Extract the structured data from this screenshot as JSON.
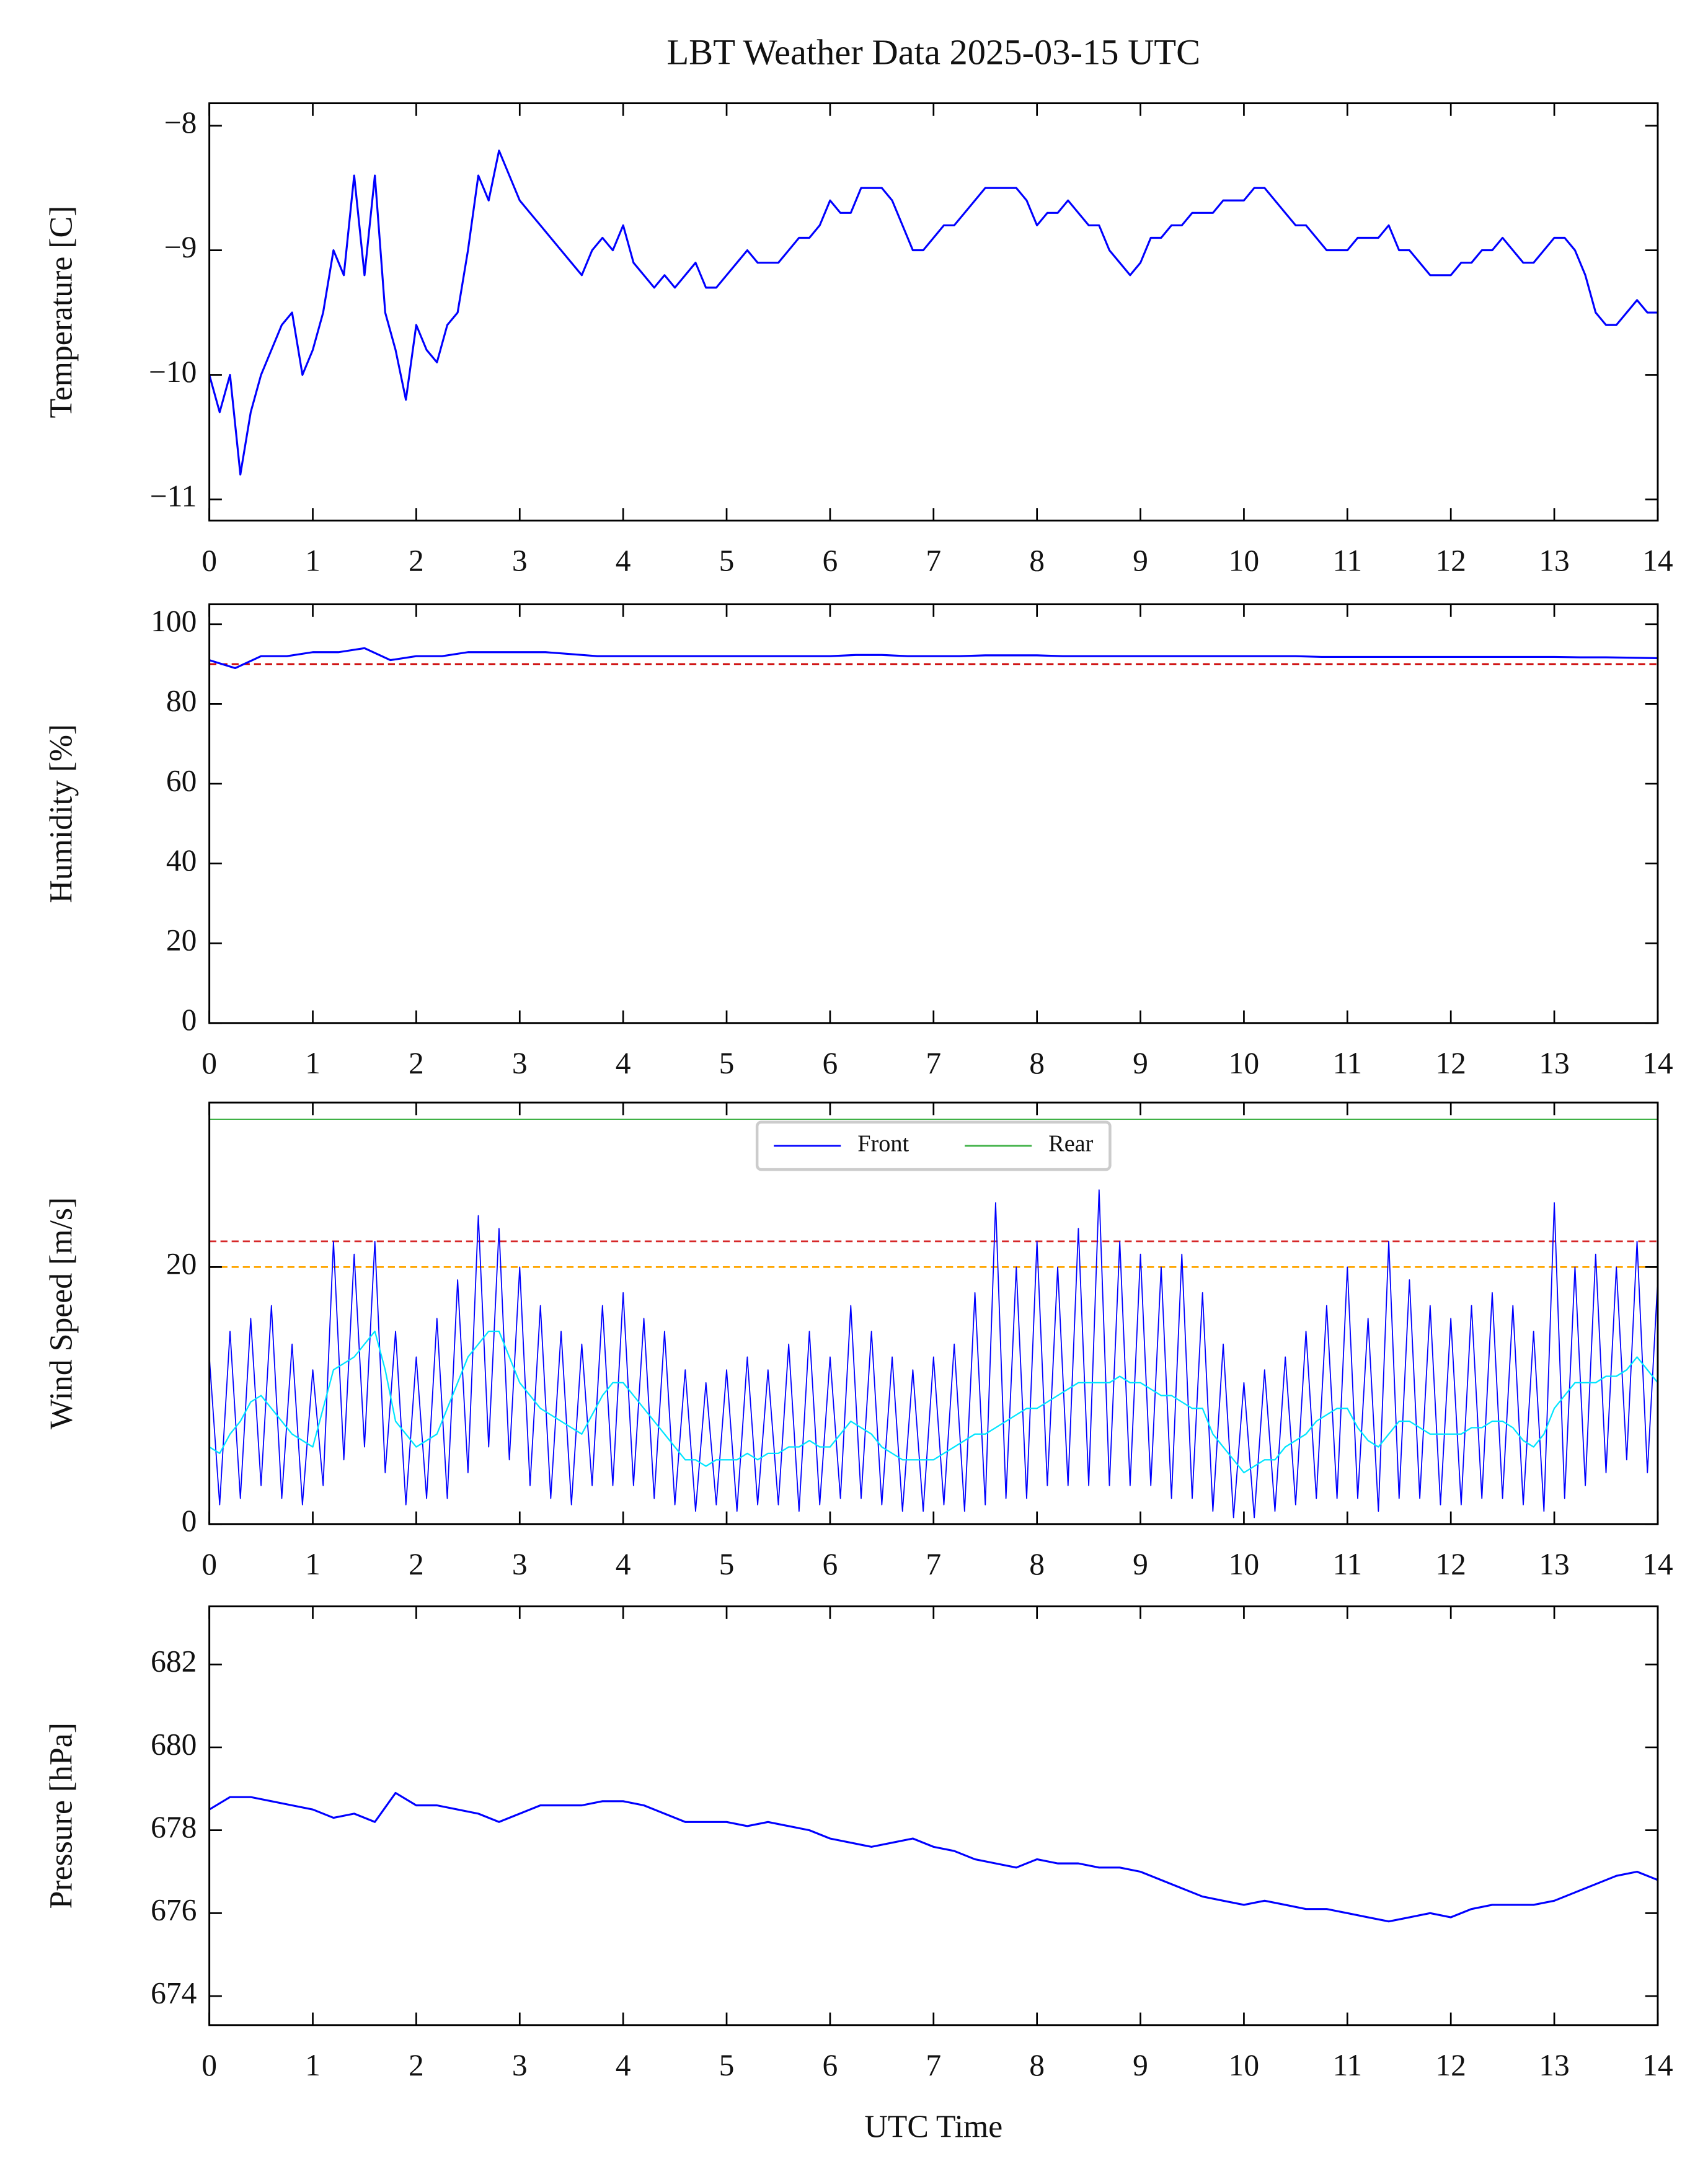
{
  "chart_data": [
    {
      "type": "line",
      "title": "LBT Weather Data 2025-03-15 UTC",
      "ylabel": "Temperature [C]",
      "x": [
        0,
        0.1,
        0.2,
        0.3,
        0.4,
        0.5,
        0.6,
        0.7,
        0.8,
        0.9,
        1,
        1.1,
        1.2,
        1.3,
        1.4,
        1.5,
        1.6,
        1.7,
        1.8,
        1.9,
        2,
        2.1,
        2.2,
        2.3,
        2.4,
        2.5,
        2.6,
        2.7,
        2.8,
        2.9,
        3,
        3.1,
        3.2,
        3.3,
        3.4,
        3.5,
        3.6,
        3.7,
        3.8,
        3.9,
        4,
        4.1,
        4.2,
        4.3,
        4.4,
        4.5,
        4.6,
        4.7,
        4.8,
        4.9,
        5,
        5.1,
        5.2,
        5.3,
        5.4,
        5.5,
        5.6,
        5.7,
        5.8,
        5.9,
        6,
        6.1,
        6.2,
        6.3,
        6.4,
        6.5,
        6.6,
        6.7,
        6.8,
        6.9,
        7,
        7.1,
        7.2,
        7.3,
        7.4,
        7.5,
        7.6,
        7.7,
        7.8,
        7.9,
        8,
        8.1,
        8.2,
        8.3,
        8.4,
        8.5,
        8.6,
        8.7,
        8.8,
        8.9,
        9,
        9.1,
        9.2,
        9.3,
        9.4,
        9.5,
        9.6,
        9.7,
        9.8,
        9.9,
        10,
        10.1,
        10.2,
        10.3,
        10.4,
        10.5,
        10.6,
        10.7,
        10.8,
        10.9,
        11,
        11.1,
        11.2,
        11.3,
        11.4,
        11.5,
        11.6,
        11.7,
        11.8,
        11.9,
        12,
        12.1,
        12.2,
        12.3,
        12.4,
        12.5,
        12.6,
        12.7,
        12.8,
        12.9,
        13,
        13.1,
        13.2,
        13.3,
        13.4,
        13.5,
        13.6,
        13.7,
        13.8,
        13.9,
        14
      ],
      "series": [
        {
          "color": "#0000ff",
          "values": [
            -10.0,
            -10.3,
            -10.0,
            -10.8,
            -10.3,
            -10.0,
            -9.8,
            -9.6,
            -9.5,
            -10.0,
            -9.8,
            -9.5,
            -9.0,
            -9.2,
            -8.4,
            -9.2,
            -8.4,
            -9.5,
            -9.8,
            -10.2,
            -9.6,
            -9.8,
            -9.9,
            -9.6,
            -9.5,
            -9.0,
            -8.4,
            -8.6,
            -8.2,
            -8.4,
            -8.6,
            -8.7,
            -8.8,
            -8.9,
            -9.0,
            -9.1,
            -9.2,
            -9.0,
            -8.9,
            -9.0,
            -8.8,
            -9.1,
            -9.2,
            -9.3,
            -9.2,
            -9.3,
            -9.2,
            -9.1,
            -9.3,
            -9.3,
            -9.2,
            -9.1,
            -9.0,
            -9.1,
            -9.1,
            -9.1,
            -9.0,
            -8.9,
            -8.9,
            -8.8,
            -8.6,
            -8.7,
            -8.7,
            -8.5,
            -8.5,
            -8.5,
            -8.6,
            -8.8,
            -9.0,
            -9.0,
            -8.9,
            -8.8,
            -8.8,
            -8.7,
            -8.6,
            -8.5,
            -8.5,
            -8.5,
            -8.5,
            -8.6,
            -8.8,
            -8.7,
            -8.7,
            -8.6,
            -8.7,
            -8.8,
            -8.8,
            -9.0,
            -9.1,
            -9.2,
            -9.1,
            -8.9,
            -8.9,
            -8.8,
            -8.8,
            -8.7,
            -8.7,
            -8.7,
            -8.6,
            -8.6,
            -8.6,
            -8.5,
            -8.5,
            -8.6,
            -8.7,
            -8.8,
            -8.8,
            -8.9,
            -9.0,
            -9.0,
            -9.0,
            -8.9,
            -8.9,
            -8.9,
            -8.8,
            -9.0,
            -9.0,
            -9.1,
            -9.2,
            -9.2,
            -9.2,
            -9.1,
            -9.1,
            -9.0,
            -9.0,
            -8.9,
            -9.0,
            -9.1,
            -9.1,
            -9.0,
            -8.9,
            -8.9,
            -9.0,
            -9.2,
            -9.5,
            -9.6,
            -9.6,
            -9.5,
            -9.4,
            -9.5,
            -9.5
          ]
        }
      ],
      "xlim": [
        0,
        14
      ],
      "xticks": [
        0,
        1,
        2,
        3,
        4,
        5,
        6,
        7,
        8,
        9,
        10,
        11,
        12,
        13,
        14
      ],
      "ylim": [
        -11.17,
        -7.82
      ],
      "yticks": [
        {
          "value": -11,
          "label": "−11"
        },
        {
          "value": -10,
          "label": "−10"
        },
        {
          "value": -9,
          "label": "−9"
        },
        {
          "value": -8,
          "label": "−8"
        }
      ]
    },
    {
      "type": "line",
      "ylabel": "Humidity [%]",
      "x": [
        0,
        0.25,
        0.5,
        0.75,
        1,
        1.25,
        1.5,
        1.75,
        2,
        2.25,
        2.5,
        2.75,
        3,
        3.25,
        3.5,
        3.75,
        4,
        4.25,
        4.5,
        4.75,
        5,
        5.25,
        5.5,
        5.75,
        6,
        6.25,
        6.5,
        6.75,
        7,
        7.25,
        7.5,
        7.75,
        8,
        8.25,
        8.5,
        8.75,
        9,
        9.25,
        9.5,
        9.75,
        10,
        10.25,
        10.5,
        10.75,
        11,
        11.25,
        11.5,
        11.75,
        12,
        12.25,
        12.5,
        12.75,
        13,
        13.25,
        13.5,
        13.75,
        14
      ],
      "series": [
        {
          "color": "#0000ff",
          "values": [
            91,
            89,
            92,
            92,
            93,
            93,
            94,
            91,
            92,
            92,
            93,
            93,
            93,
            93,
            92.5,
            92,
            92,
            92,
            92,
            92,
            92,
            92,
            92,
            92,
            92,
            92.3,
            92.3,
            92,
            92,
            92,
            92.2,
            92.2,
            92.2,
            92,
            92,
            92,
            92,
            92,
            92,
            92,
            92,
            92,
            92,
            91.8,
            91.8,
            91.8,
            91.8,
            91.8,
            91.8,
            91.8,
            91.8,
            91.8,
            91.8,
            91.7,
            91.7,
            91.6,
            91.5
          ]
        }
      ],
      "hlines": [
        {
          "value": 90,
          "color": "#cc0000",
          "dashed": true
        }
      ],
      "xlim": [
        0,
        14
      ],
      "xticks": [
        0,
        1,
        2,
        3,
        4,
        5,
        6,
        7,
        8,
        9,
        10,
        11,
        12,
        13,
        14
      ],
      "ylim": [
        0,
        105
      ],
      "yticks": [
        0,
        20,
        40,
        60,
        80,
        100
      ]
    },
    {
      "type": "line",
      "ylabel": "Wind Speed [m/s]",
      "legend": "upper center",
      "x": [
        0,
        0.1,
        0.2,
        0.3,
        0.4,
        0.5,
        0.6,
        0.7,
        0.8,
        0.9,
        1,
        1.1,
        1.2,
        1.3,
        1.4,
        1.5,
        1.6,
        1.7,
        1.8,
        1.9,
        2,
        2.1,
        2.2,
        2.3,
        2.4,
        2.5,
        2.6,
        2.7,
        2.8,
        2.9,
        3,
        3.1,
        3.2,
        3.3,
        3.4,
        3.5,
        3.6,
        3.7,
        3.8,
        3.9,
        4,
        4.1,
        4.2,
        4.3,
        4.4,
        4.5,
        4.6,
        4.7,
        4.8,
        4.9,
        5,
        5.1,
        5.2,
        5.3,
        5.4,
        5.5,
        5.6,
        5.7,
        5.8,
        5.9,
        6,
        6.1,
        6.2,
        6.3,
        6.4,
        6.5,
        6.6,
        6.7,
        6.8,
        6.9,
        7,
        7.1,
        7.2,
        7.3,
        7.4,
        7.5,
        7.6,
        7.7,
        7.8,
        7.9,
        8,
        8.1,
        8.2,
        8.3,
        8.4,
        8.5,
        8.6,
        8.7,
        8.8,
        8.9,
        9,
        9.1,
        9.2,
        9.3,
        9.4,
        9.5,
        9.6,
        9.7,
        9.8,
        9.9,
        10,
        10.1,
        10.2,
        10.3,
        10.4,
        10.5,
        10.6,
        10.7,
        10.8,
        10.9,
        11,
        11.1,
        11.2,
        11.3,
        11.4,
        11.5,
        11.6,
        11.7,
        11.8,
        11.9,
        12,
        12.1,
        12.2,
        12.3,
        12.4,
        12.5,
        12.6,
        12.7,
        12.8,
        12.9,
        13,
        13.1,
        13.2,
        13.3,
        13.4,
        13.5,
        13.6,
        13.7,
        13.8,
        13.9,
        14
      ],
      "series": [
        {
          "name": "Front",
          "color": "#0000ff",
          "width": 0.8,
          "values": [
            13,
            1.5,
            15,
            2,
            16,
            3,
            17,
            2,
            14,
            1.5,
            12,
            3,
            22,
            5,
            21,
            6,
            22,
            4,
            15,
            1.5,
            13,
            2,
            16,
            2,
            19,
            4,
            24,
            6,
            23,
            5,
            20,
            3,
            17,
            2,
            15,
            1.5,
            14,
            3,
            17,
            3,
            18,
            3,
            16,
            2,
            15,
            1.5,
            12,
            1,
            11,
            1.5,
            12,
            1,
            13,
            1.5,
            12,
            1.5,
            14,
            1,
            15,
            1.5,
            13,
            2,
            17,
            2,
            15,
            1.5,
            13,
            1,
            12,
            1,
            13,
            1.5,
            14,
            1,
            18,
            1.5,
            25,
            2,
            20,
            2,
            22,
            3,
            20,
            3,
            23,
            3,
            26,
            3,
            22,
            3,
            21,
            3,
            20,
            2,
            21,
            2,
            18,
            1,
            14,
            0.5,
            11,
            0.5,
            12,
            1,
            13,
            1.5,
            15,
            2,
            17,
            2,
            20,
            2,
            16,
            1,
            22,
            2,
            19,
            2,
            17,
            1.5,
            16,
            1.5,
            17,
            2,
            18,
            2,
            17,
            1.5,
            15,
            1,
            25,
            2,
            20,
            3,
            21,
            4,
            20,
            5,
            22,
            4,
            19
          ]
        },
        {
          "color": "#00e5ff",
          "width": 1,
          "values": [
            6,
            5.5,
            7,
            8,
            9.5,
            10,
            9,
            8,
            7,
            6.5,
            6,
            9,
            12,
            12.5,
            13,
            14,
            15,
            12,
            8,
            7,
            6,
            6.5,
            7,
            9,
            11,
            13,
            14,
            15,
            15,
            13,
            11,
            10,
            9,
            8.5,
            8,
            7.5,
            7,
            8.5,
            10,
            11,
            11,
            10,
            9,
            8,
            7,
            6,
            5,
            5,
            4.5,
            5,
            5,
            5,
            5.5,
            5,
            5.5,
            5.5,
            6,
            6,
            6.5,
            6,
            6,
            7,
            8,
            7.5,
            7,
            6,
            5.5,
            5,
            5,
            5,
            5,
            5.5,
            6,
            6.5,
            7,
            7,
            7.5,
            8,
            8.5,
            9,
            9,
            9.5,
            10,
            10.5,
            11,
            11,
            11,
            11,
            11.5,
            11,
            11,
            10.5,
            10,
            10,
            9.5,
            9,
            9,
            7,
            6,
            5,
            4,
            4.5,
            5,
            5,
            6,
            6.5,
            7,
            8,
            8.5,
            9,
            9,
            7.5,
            6.5,
            6,
            7,
            8,
            8,
            7.5,
            7,
            7,
            7,
            7,
            7.5,
            7.5,
            8,
            8,
            7.5,
            6.5,
            6,
            7,
            9,
            10,
            11,
            11,
            11,
            11.5,
            11.5,
            12,
            13,
            12,
            11
          ]
        },
        {
          "name": "Rear",
          "color": "#3cb043",
          "width": 0.8,
          "x": [
            0,
            14
          ],
          "values": [
            31.5,
            31.5
          ]
        }
      ],
      "hlines": [
        {
          "value": 22,
          "color": "#d62728",
          "dashed": true
        },
        {
          "value": 20,
          "color": "#ffa500",
          "dashed": true
        }
      ],
      "xlim": [
        0,
        14
      ],
      "xticks": [
        0,
        1,
        2,
        3,
        4,
        5,
        6,
        7,
        8,
        9,
        10,
        11,
        12,
        13,
        14
      ],
      "ylim": [
        0,
        32.8
      ],
      "yticks": [
        0,
        20
      ]
    },
    {
      "type": "line",
      "ylabel": "Pressure [hPa]",
      "xlabel": "UTC Time",
      "x": [
        0,
        0.2,
        0.4,
        0.6,
        0.8,
        1,
        1.2,
        1.4,
        1.6,
        1.8,
        2,
        2.2,
        2.4,
        2.6,
        2.8,
        3,
        3.2,
        3.4,
        3.6,
        3.8,
        4,
        4.2,
        4.4,
        4.6,
        4.8,
        5,
        5.2,
        5.4,
        5.6,
        5.8,
        6,
        6.2,
        6.4,
        6.6,
        6.8,
        7,
        7.2,
        7.4,
        7.6,
        7.8,
        8,
        8.2,
        8.4,
        8.6,
        8.8,
        9,
        9.2,
        9.4,
        9.6,
        9.8,
        10,
        10.2,
        10.4,
        10.6,
        10.8,
        11,
        11.2,
        11.4,
        11.6,
        11.8,
        12,
        12.2,
        12.4,
        12.6,
        12.8,
        13,
        13.2,
        13.4,
        13.6,
        13.8,
        14
      ],
      "series": [
        {
          "color": "#0000ff",
          "values": [
            678.5,
            678.8,
            678.8,
            678.7,
            678.6,
            678.5,
            678.3,
            678.4,
            678.2,
            678.9,
            678.6,
            678.6,
            678.5,
            678.4,
            678.2,
            678.4,
            678.6,
            678.6,
            678.6,
            678.7,
            678.7,
            678.6,
            678.4,
            678.2,
            678.2,
            678.2,
            678.1,
            678.2,
            678.1,
            678.0,
            677.8,
            677.7,
            677.6,
            677.7,
            677.8,
            677.6,
            677.5,
            677.3,
            677.2,
            677.1,
            677.3,
            677.2,
            677.2,
            677.1,
            677.1,
            677.0,
            676.8,
            676.6,
            676.4,
            676.3,
            676.2,
            676.3,
            676.2,
            676.1,
            676.1,
            676.0,
            675.9,
            675.8,
            675.9,
            676.0,
            675.9,
            676.1,
            676.2,
            676.2,
            676.2,
            676.3,
            676.5,
            676.7,
            676.9,
            677.0,
            676.8
          ]
        }
      ],
      "xlim": [
        0,
        14
      ],
      "xticks": [
        0,
        1,
        2,
        3,
        4,
        5,
        6,
        7,
        8,
        9,
        10,
        11,
        12,
        13,
        14
      ],
      "ylim": [
        673.3,
        683.4
      ],
      "yticks": [
        674,
        676,
        678,
        680,
        682
      ]
    }
  ]
}
